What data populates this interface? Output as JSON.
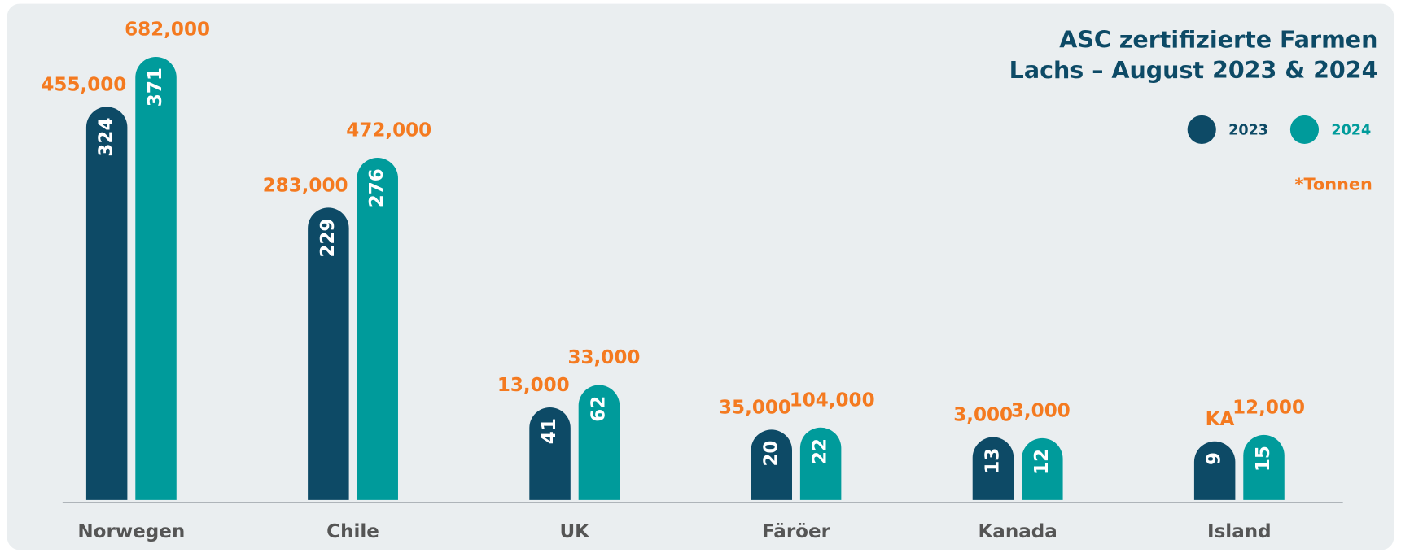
{
  "chart_data": {
    "type": "bar",
    "title": "ASC zertifizierte Farmen",
    "subtitle": "Lachs – August 2023 & 2024",
    "note": "*Tonnen",
    "categories": [
      "Norwegen",
      "Chile",
      "UK",
      "Färöer",
      "Kanada",
      "Island"
    ],
    "legend": "top-right",
    "series": [
      {
        "name": "2023",
        "color": "#0d4a66",
        "values": [
          324,
          229,
          41,
          20,
          13,
          9
        ],
        "tonnes": {
          "values": [
            455000,
            283000,
            13000,
            35000,
            3000,
            null
          ],
          "value_labels": [
            "455,000",
            "283,000",
            "13,000",
            "35,000",
            "3,000",
            "KA"
          ]
        }
      },
      {
        "name": "2024",
        "color": "#009b9b",
        "values": [
          371,
          276,
          62,
          22,
          12,
          15
        ],
        "tonnes": {
          "values": [
            682000,
            472000,
            33000,
            104000,
            3000,
            12000
          ],
          "value_labels": [
            "682,000",
            "472,000",
            "33,000",
            "104,000",
            "3,000",
            "12,000"
          ]
        }
      }
    ]
  }
}
